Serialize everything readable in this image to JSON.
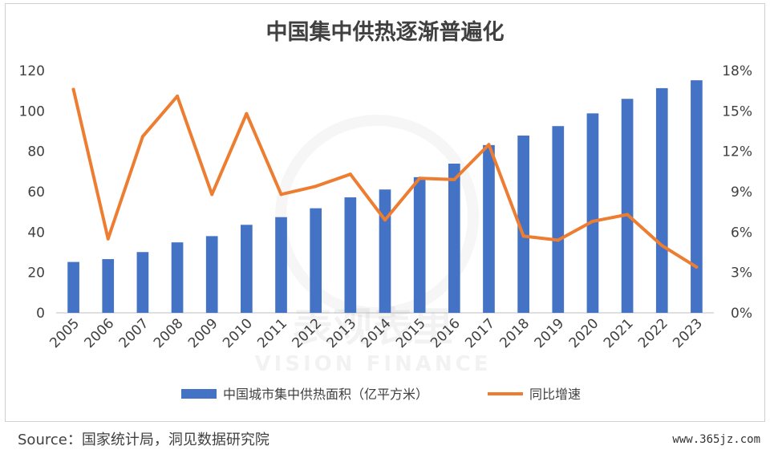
{
  "title": "中国集中供热逐渐普遍化",
  "source": "Source：国家统计局，洞见数据研究院",
  "site": "www.365jz.com",
  "colors": {
    "bar": "#4472C4",
    "line": "#ED7D31"
  },
  "chart_data": {
    "type": "bar+line",
    "title": "中国集中供热逐渐普遍化",
    "categories": [
      "2005",
      "2006",
      "2007",
      "2008",
      "2009",
      "2010",
      "2011",
      "2012",
      "2013",
      "2014",
      "2015",
      "2016",
      "2017",
      "2018",
      "2019",
      "2020",
      "2021",
      "2022",
      "2023"
    ],
    "series": [
      {
        "name": "中国城市集中供热面积（亿平方米）",
        "type": "bar",
        "axis": "left",
        "values": [
          25.2,
          26.6,
          30.1,
          34.9,
          38.0,
          43.6,
          47.4,
          51.8,
          57.2,
          61.1,
          67.2,
          73.9,
          83.1,
          87.8,
          92.5,
          98.8,
          106.0,
          111.3,
          115.2
        ]
      },
      {
        "name": "同比增速",
        "type": "line",
        "axis": "right",
        "values": [
          16.6,
          5.5,
          13.1,
          16.1,
          8.8,
          14.8,
          8.8,
          9.4,
          10.3,
          6.9,
          10.0,
          9.9,
          12.5,
          5.7,
          5.4,
          6.8,
          7.3,
          5.0,
          3.4
        ]
      }
    ],
    "yleft": {
      "lim": [
        0,
        120
      ],
      "ticks": [
        0,
        20,
        40,
        60,
        80,
        100,
        120
      ]
    },
    "yright": {
      "lim": [
        0,
        18
      ],
      "ticks": [
        "0%",
        "3%",
        "6%",
        "9%",
        "12%",
        "15%",
        "18%"
      ]
    },
    "legend_position": "bottom",
    "grid": false
  },
  "watermark": {
    "cn": "表观表里",
    "en": "VISION FINANCE"
  }
}
